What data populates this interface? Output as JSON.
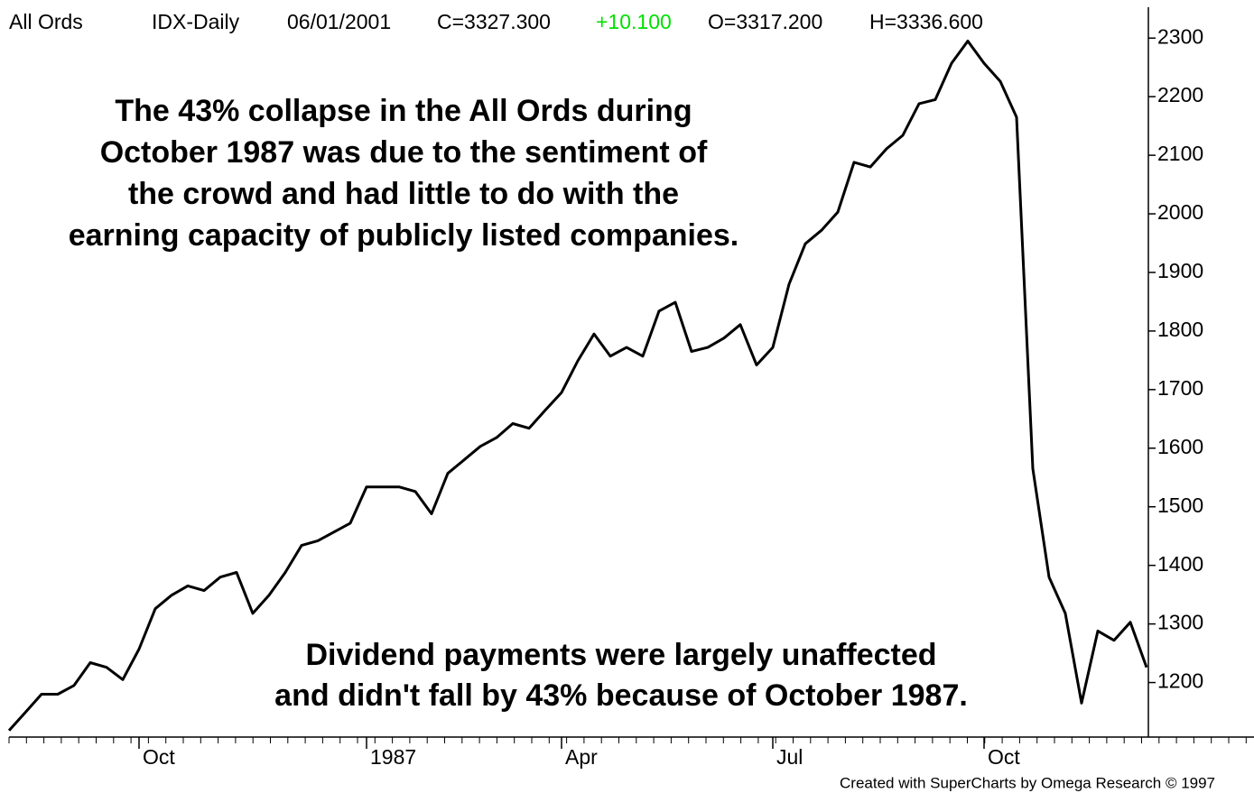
{
  "chart_data": {
    "type": "line",
    "header": [
      "All Ords",
      "IDX-Daily",
      "06/01/2001",
      "C=3327.300",
      "+10.100",
      "O=3317.200",
      "H=3336.600"
    ],
    "annotations": [
      [
        "The 43% collapse in the All Ords during",
        "October 1987 was due to the sentiment of",
        "the crowd and had little to do with the",
        "earning capacity of publicly listed companies."
      ],
      [
        "Dividend payments were largely unaffected",
        "and didn't fall by 43% because of October 1987."
      ]
    ],
    "footer": "Created with SuperCharts by Omega Research © 1997",
    "categories": [
      null,
      null,
      null,
      null,
      null,
      null,
      null,
      null,
      "Oct",
      null,
      null,
      null,
      null,
      null,
      null,
      null,
      null,
      null,
      null,
      null,
      null,
      null,
      "1987",
      null,
      null,
      null,
      null,
      null,
      null,
      null,
      null,
      null,
      null,
      null,
      "Apr",
      null,
      null,
      null,
      null,
      null,
      null,
      null,
      null,
      null,
      null,
      null,
      null,
      "Jul",
      null,
      null,
      null,
      null,
      null,
      null,
      null,
      null,
      null,
      null,
      null,
      null,
      "Oct",
      null,
      null,
      null,
      null,
      null,
      null,
      null,
      null,
      null,
      null
    ],
    "values": [
      1118,
      1149,
      1180,
      1180,
      1195,
      1234,
      1226,
      1205,
      1257,
      1326,
      1349,
      1365,
      1357,
      1380,
      1388,
      1318,
      1349,
      1388,
      1434,
      1442,
      1457,
      1472,
      1534,
      1534,
      1534,
      1526,
      1488,
      1557,
      1580,
      1603,
      1618,
      1642,
      1634,
      1665,
      1695,
      1749,
      1795,
      1757,
      1772,
      1757,
      1834,
      1849,
      1765,
      1772,
      1788,
      1811,
      1742,
      1772,
      1880,
      1949,
      1972,
      2003,
      2088,
      2080,
      2111,
      2134,
      2188,
      2195,
      2257,
      2295,
      2257,
      2226,
      2165,
      1565,
      1380,
      1318,
      1165,
      1288,
      1272,
      1303,
      1226
    ],
    "color": "#000000",
    "ylim": [
      1110,
      2365
    ],
    "yticks": [
      1200,
      1300,
      1400,
      1500,
      1600,
      1700,
      1800,
      1900,
      2000,
      2100,
      2200,
      2300
    ]
  }
}
